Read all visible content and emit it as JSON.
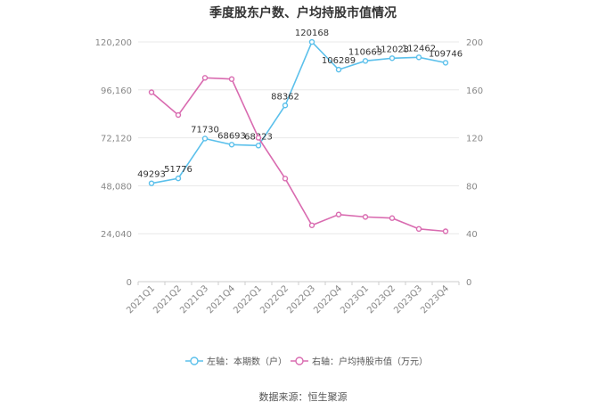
{
  "chart_data": {
    "type": "line",
    "title": "季度股东户数、户均持股市值情况",
    "categories": [
      "2021Q1",
      "2021Q2",
      "2021Q3",
      "2021Q4",
      "2022Q1",
      "2022Q2",
      "2022Q3",
      "2022Q4",
      "2023Q1",
      "2023Q2",
      "2023Q3",
      "2023Q4"
    ],
    "left_axis": {
      "min": 0,
      "max": 120200,
      "ticks": [
        "0",
        "24,040",
        "48,080",
        "72,120",
        "96,160",
        "120,200"
      ]
    },
    "right_axis": {
      "min": 0,
      "max": 200,
      "ticks": [
        "0",
        "40",
        "80",
        "120",
        "160",
        "200"
      ]
    },
    "series": [
      {
        "name": "左轴：本期数（户）",
        "axis": "left",
        "color": "#5bc0eb",
        "values": [
          49293,
          51776,
          71730,
          68693,
          68223,
          88362,
          120168,
          106289,
          110663,
          112023,
          112462,
          109746
        ],
        "labels": [
          "49293",
          "51776",
          "71730",
          "68693",
          "68223",
          "88362",
          "120168",
          "106289",
          "110663",
          "112023",
          "112462",
          "109746"
        ]
      },
      {
        "name": "右轴：户均持股市值（万元）",
        "axis": "right",
        "color": "#d96bb0",
        "values": [
          158,
          139,
          170,
          169,
          120,
          86,
          47,
          56,
          54,
          53,
          44,
          42
        ]
      }
    ],
    "legend_position": "bottom",
    "grid": true
  },
  "footer": {
    "source": "数据来源：恒生聚源"
  }
}
